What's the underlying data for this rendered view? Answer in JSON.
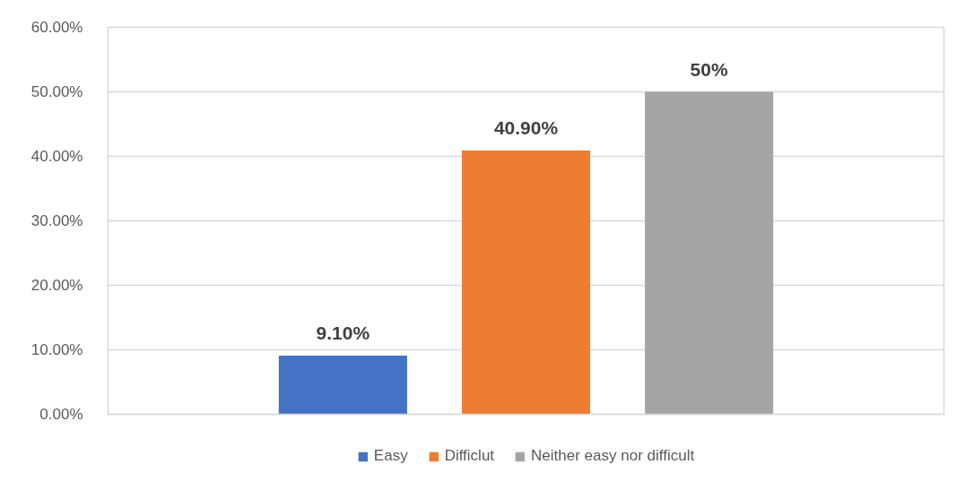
{
  "chart_data": {
    "type": "bar",
    "categories": [
      null
    ],
    "series": [
      {
        "name": "Easy",
        "color": "#4472c4",
        "values": [
          9.1
        ],
        "value_labels": [
          "9.10%"
        ]
      },
      {
        "name": "Difficlut",
        "color": "#ed7d31",
        "values": [
          40.9
        ],
        "value_labels": [
          "40.90%"
        ]
      },
      {
        "name": "Neither easy nor difficult",
        "color": "#a5a5a5",
        "values": [
          50
        ],
        "value_labels": [
          "50%"
        ]
      }
    ],
    "ylim": [
      0,
      60
    ],
    "yticks": [
      {
        "value": 0,
        "label": "0.00%"
      },
      {
        "value": 10,
        "label": "10.00%"
      },
      {
        "value": 20,
        "label": "20.00%"
      },
      {
        "value": 30,
        "label": "30.00%"
      },
      {
        "value": 40,
        "label": "40.00%"
      },
      {
        "value": 50,
        "label": "50.00%"
      },
      {
        "value": 60,
        "label": "60.00%"
      }
    ],
    "grid": "y",
    "legend": "bottom"
  }
}
